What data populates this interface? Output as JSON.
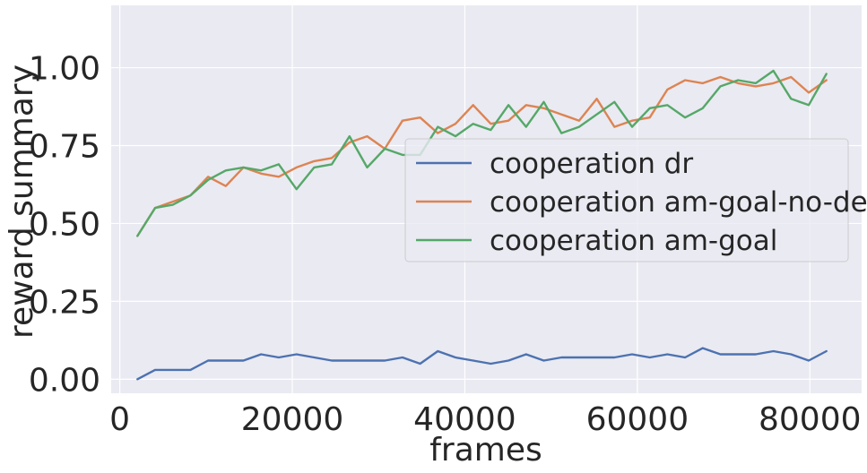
{
  "chart_data": {
    "type": "line",
    "title": "",
    "xlabel": "frames",
    "ylabel": "reward summary",
    "xlim": [
      -1000,
      86000
    ],
    "ylim": [
      -0.045,
      1.2
    ],
    "xticks": [
      0,
      20000,
      40000,
      60000,
      80000
    ],
    "xtick_labels": [
      "0",
      "20000",
      "40000",
      "60000",
      "80000"
    ],
    "yticks": [
      0.0,
      0.25,
      0.5,
      0.75,
      1.0
    ],
    "ytick_labels": [
      "0.00",
      "0.25",
      "0.50",
      "0.75",
      "1.00"
    ],
    "grid": true,
    "legend_position": "center-right",
    "background": "#eaeaf2",
    "x": [
      2048,
      4096,
      6144,
      8192,
      10240,
      12288,
      14336,
      16384,
      18432,
      20480,
      22528,
      24576,
      26624,
      28672,
      30720,
      32768,
      34816,
      36864,
      38912,
      40960,
      43008,
      45056,
      47104,
      49152,
      51200,
      53248,
      55296,
      57344,
      59392,
      61440,
      63488,
      65536,
      67584,
      69632,
      71680,
      73728,
      75776,
      77824,
      79872,
      81920
    ],
    "series": [
      {
        "name": "cooperation dr",
        "color": "#4c72b0",
        "values": [
          0.0,
          0.03,
          0.03,
          0.03,
          0.06,
          0.06,
          0.06,
          0.08,
          0.07,
          0.08,
          0.07,
          0.06,
          0.06,
          0.06,
          0.06,
          0.07,
          0.05,
          0.09,
          0.07,
          0.06,
          0.05,
          0.06,
          0.08,
          0.06,
          0.07,
          0.07,
          0.07,
          0.07,
          0.08,
          0.07,
          0.08,
          0.07,
          0.1,
          0.08,
          0.08,
          0.08,
          0.09,
          0.08,
          0.06,
          0.09
        ]
      },
      {
        "name": "cooperation am-goal-no-debt",
        "color": "#dd8452",
        "values": [
          0.46,
          0.55,
          0.57,
          0.59,
          0.65,
          0.62,
          0.68,
          0.66,
          0.65,
          0.68,
          0.7,
          0.71,
          0.76,
          0.78,
          0.74,
          0.83,
          0.84,
          0.79,
          0.82,
          0.88,
          0.82,
          0.83,
          0.88,
          0.87,
          0.85,
          0.83,
          0.9,
          0.81,
          0.83,
          0.84,
          0.93,
          0.96,
          0.95,
          0.97,
          0.95,
          0.94,
          0.95,
          0.97,
          0.92,
          0.96
        ]
      },
      {
        "name": "cooperation am-goal",
        "color": "#55a868",
        "values": [
          0.46,
          0.55,
          0.56,
          0.59,
          0.64,
          0.67,
          0.68,
          0.67,
          0.69,
          0.61,
          0.68,
          0.69,
          0.78,
          0.68,
          0.74,
          0.72,
          0.72,
          0.81,
          0.78,
          0.82,
          0.8,
          0.88,
          0.81,
          0.89,
          0.79,
          0.81,
          0.85,
          0.89,
          0.81,
          0.87,
          0.88,
          0.84,
          0.87,
          0.94,
          0.96,
          0.95,
          0.99,
          0.9,
          0.88,
          0.98
        ]
      }
    ]
  }
}
